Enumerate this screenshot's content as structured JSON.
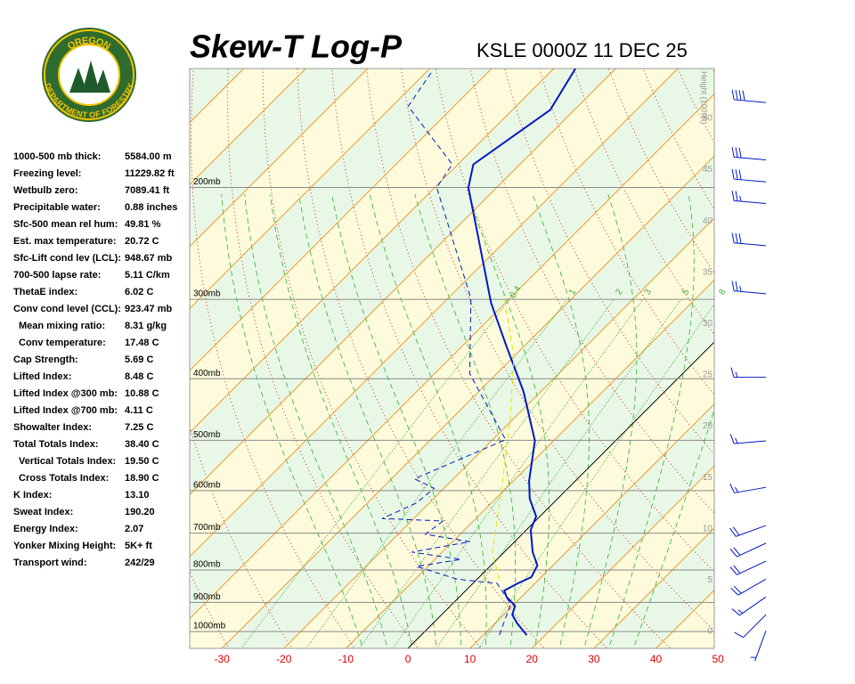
{
  "logo": {
    "top": "OREGON",
    "bottom": "DEPARTMENT OF FORESTRY"
  },
  "indices": [
    {
      "label": "1000-500 mb thick:",
      "value": "5584.00 m"
    },
    {
      "label": "Freezing level:",
      "value": "11229.82 ft"
    },
    {
      "label": "Wetbulb zero:",
      "value": "7089.41 ft"
    },
    {
      "label": "Precipitable water:",
      "value": "0.88 inches"
    },
    {
      "label": "Sfc-500 mean rel hum:",
      "value": "49.81 %"
    },
    {
      "label": "Est. max temperature:",
      "value": "20.72 C"
    },
    {
      "label": "Sfc-Lift cond lev (LCL):",
      "value": "948.67 mb"
    },
    {
      "label": "700-500 lapse rate:",
      "value": "5.11 C/km"
    },
    {
      "label": "ThetaE index:",
      "value": "6.02 C"
    },
    {
      "label": "Conv cond level (CCL):",
      "value": "923.47 mb"
    },
    {
      "label": "Mean mixing ratio:",
      "value": "8.31 g/kg",
      "sub": true
    },
    {
      "label": "Conv temperature:",
      "value": "17.48 C",
      "sub": true
    },
    {
      "label": "Cap Strength:",
      "value": "5.69 C"
    },
    {
      "label": "Lifted Index:",
      "value": "8.48 C"
    },
    {
      "label": "Lifted Index @300 mb:",
      "value": "10.88 C"
    },
    {
      "label": "Lifted Index @700 mb:",
      "value": "4.11 C"
    },
    {
      "label": "Showalter Index:",
      "value": "7.25 C"
    },
    {
      "label": "Total Totals Index:",
      "value": "38.40 C"
    },
    {
      "label": "Vertical Totals Index:",
      "value": "19.50 C",
      "sub": true
    },
    {
      "label": "Cross Totals Index:",
      "value": "18.90 C",
      "sub": true
    },
    {
      "label": "K Index:",
      "value": "13.10"
    },
    {
      "label": "Sweat Index:",
      "value": "190.20"
    },
    {
      "label": "Energy Index:",
      "value": "2.07"
    },
    {
      "label": "Yonker Mixing Height:",
      "value": "5K+ ft"
    },
    {
      "label": "Transport wind:",
      "value": "242/29"
    }
  ],
  "chart_data": {
    "type": "skewt",
    "title": "Skew-T Log-P",
    "subtitle": "KSLE 0000Z 11 DEC 25",
    "xlim": [
      -35.2,
      49.4
    ],
    "xticks": [
      -30,
      -20,
      -10,
      0,
      10,
      20,
      30,
      40,
      50
    ],
    "xtick_color": "#e00000",
    "ylim": [
      1063,
      130
    ],
    "ylog": true,
    "yticks": [
      {
        "value": 200,
        "label": "200mb"
      },
      {
        "value": 300,
        "label": "300mb"
      },
      {
        "value": 400,
        "label": "400mb"
      },
      {
        "value": 500,
        "label": "500mb"
      },
      {
        "value": 600,
        "label": "600mb"
      },
      {
        "value": 700,
        "label": "700mb"
      },
      {
        "value": 800,
        "label": "800mb"
      },
      {
        "value": 900,
        "label": "900mb"
      },
      {
        "value": 1000,
        "label": "1000mb"
      }
    ],
    "y2label": "Height (1000ft)",
    "y2lim": [
      -1.65,
      54.86
    ],
    "y2ticks": [
      0,
      5,
      10,
      15,
      20,
      25,
      30,
      35,
      40,
      45,
      50
    ],
    "mixing_ratios": [
      {
        "value": 0.4,
        "label": "0.4"
      },
      1,
      2,
      3,
      5,
      8
    ],
    "series": [
      {
        "color": "#0018c8",
        "dash": false,
        "width": 2,
        "pressure": [
          1013,
          971,
          941,
          911,
          882,
          862,
          840,
          821,
          787,
          750,
          692,
          659,
          618,
          579,
          501,
          419,
          357,
          304,
          235,
          200,
          184,
          151,
          130
        ],
        "temperature": [
          17.0,
          13.6,
          11.4,
          10.4,
          7.6,
          6.2,
          7.2,
          8.4,
          7.5,
          4.6,
          0.7,
          -0.6,
          -4.5,
          -7.5,
          -13.0,
          -22.8,
          -32.6,
          -42.3,
          -56.0,
          -64.6,
          -67.5,
          -63.9,
          -66.5
        ]
      },
      {
        "color": "#0018c8",
        "dash": true,
        "width": 1,
        "pressure": [
          1013,
          905,
          840,
          827,
          790,
          770,
          750,
          722,
          703,
          670,
          664,
          628,
          595,
          575,
          499,
          393,
          299,
          200,
          184,
          149,
          131
        ],
        "temperature": [
          12.6,
          9.4,
          3.9,
          -3.3,
          -11.8,
          -5.8,
          -14.9,
          -7.2,
          -15.6,
          -14.9,
          -25.1,
          -22.1,
          -21.6,
          -26.3,
          -17.9,
          -34.3,
          -46.3,
          -69.7,
          -70.9,
          -87.4,
          -89.2
        ]
      },
      {
        "color": "#e8e000",
        "dash": true,
        "width": 1,
        "pressure": [
          827,
          750,
          598,
          462,
          369,
          295
        ],
        "temperature": [
          3.5,
          -1.9,
          -10.5,
          -20.6,
          -30.0,
          -41.6
        ]
      }
    ],
    "winds": {
      "pressure": [
        147,
        181,
        196,
        212,
        247,
        294,
        398,
        501,
        593,
        681,
        726,
        775,
        827,
        882,
        941,
        997
      ],
      "direction": [
        275,
        275,
        275,
        275,
        275,
        275,
        270,
        265,
        260,
        250,
        245,
        245,
        240,
        235,
        225,
        200
      ],
      "speed": [
        40,
        30,
        30,
        25,
        30,
        25,
        15,
        15,
        15,
        20,
        20,
        20,
        20,
        15,
        10,
        5
      ]
    }
  }
}
